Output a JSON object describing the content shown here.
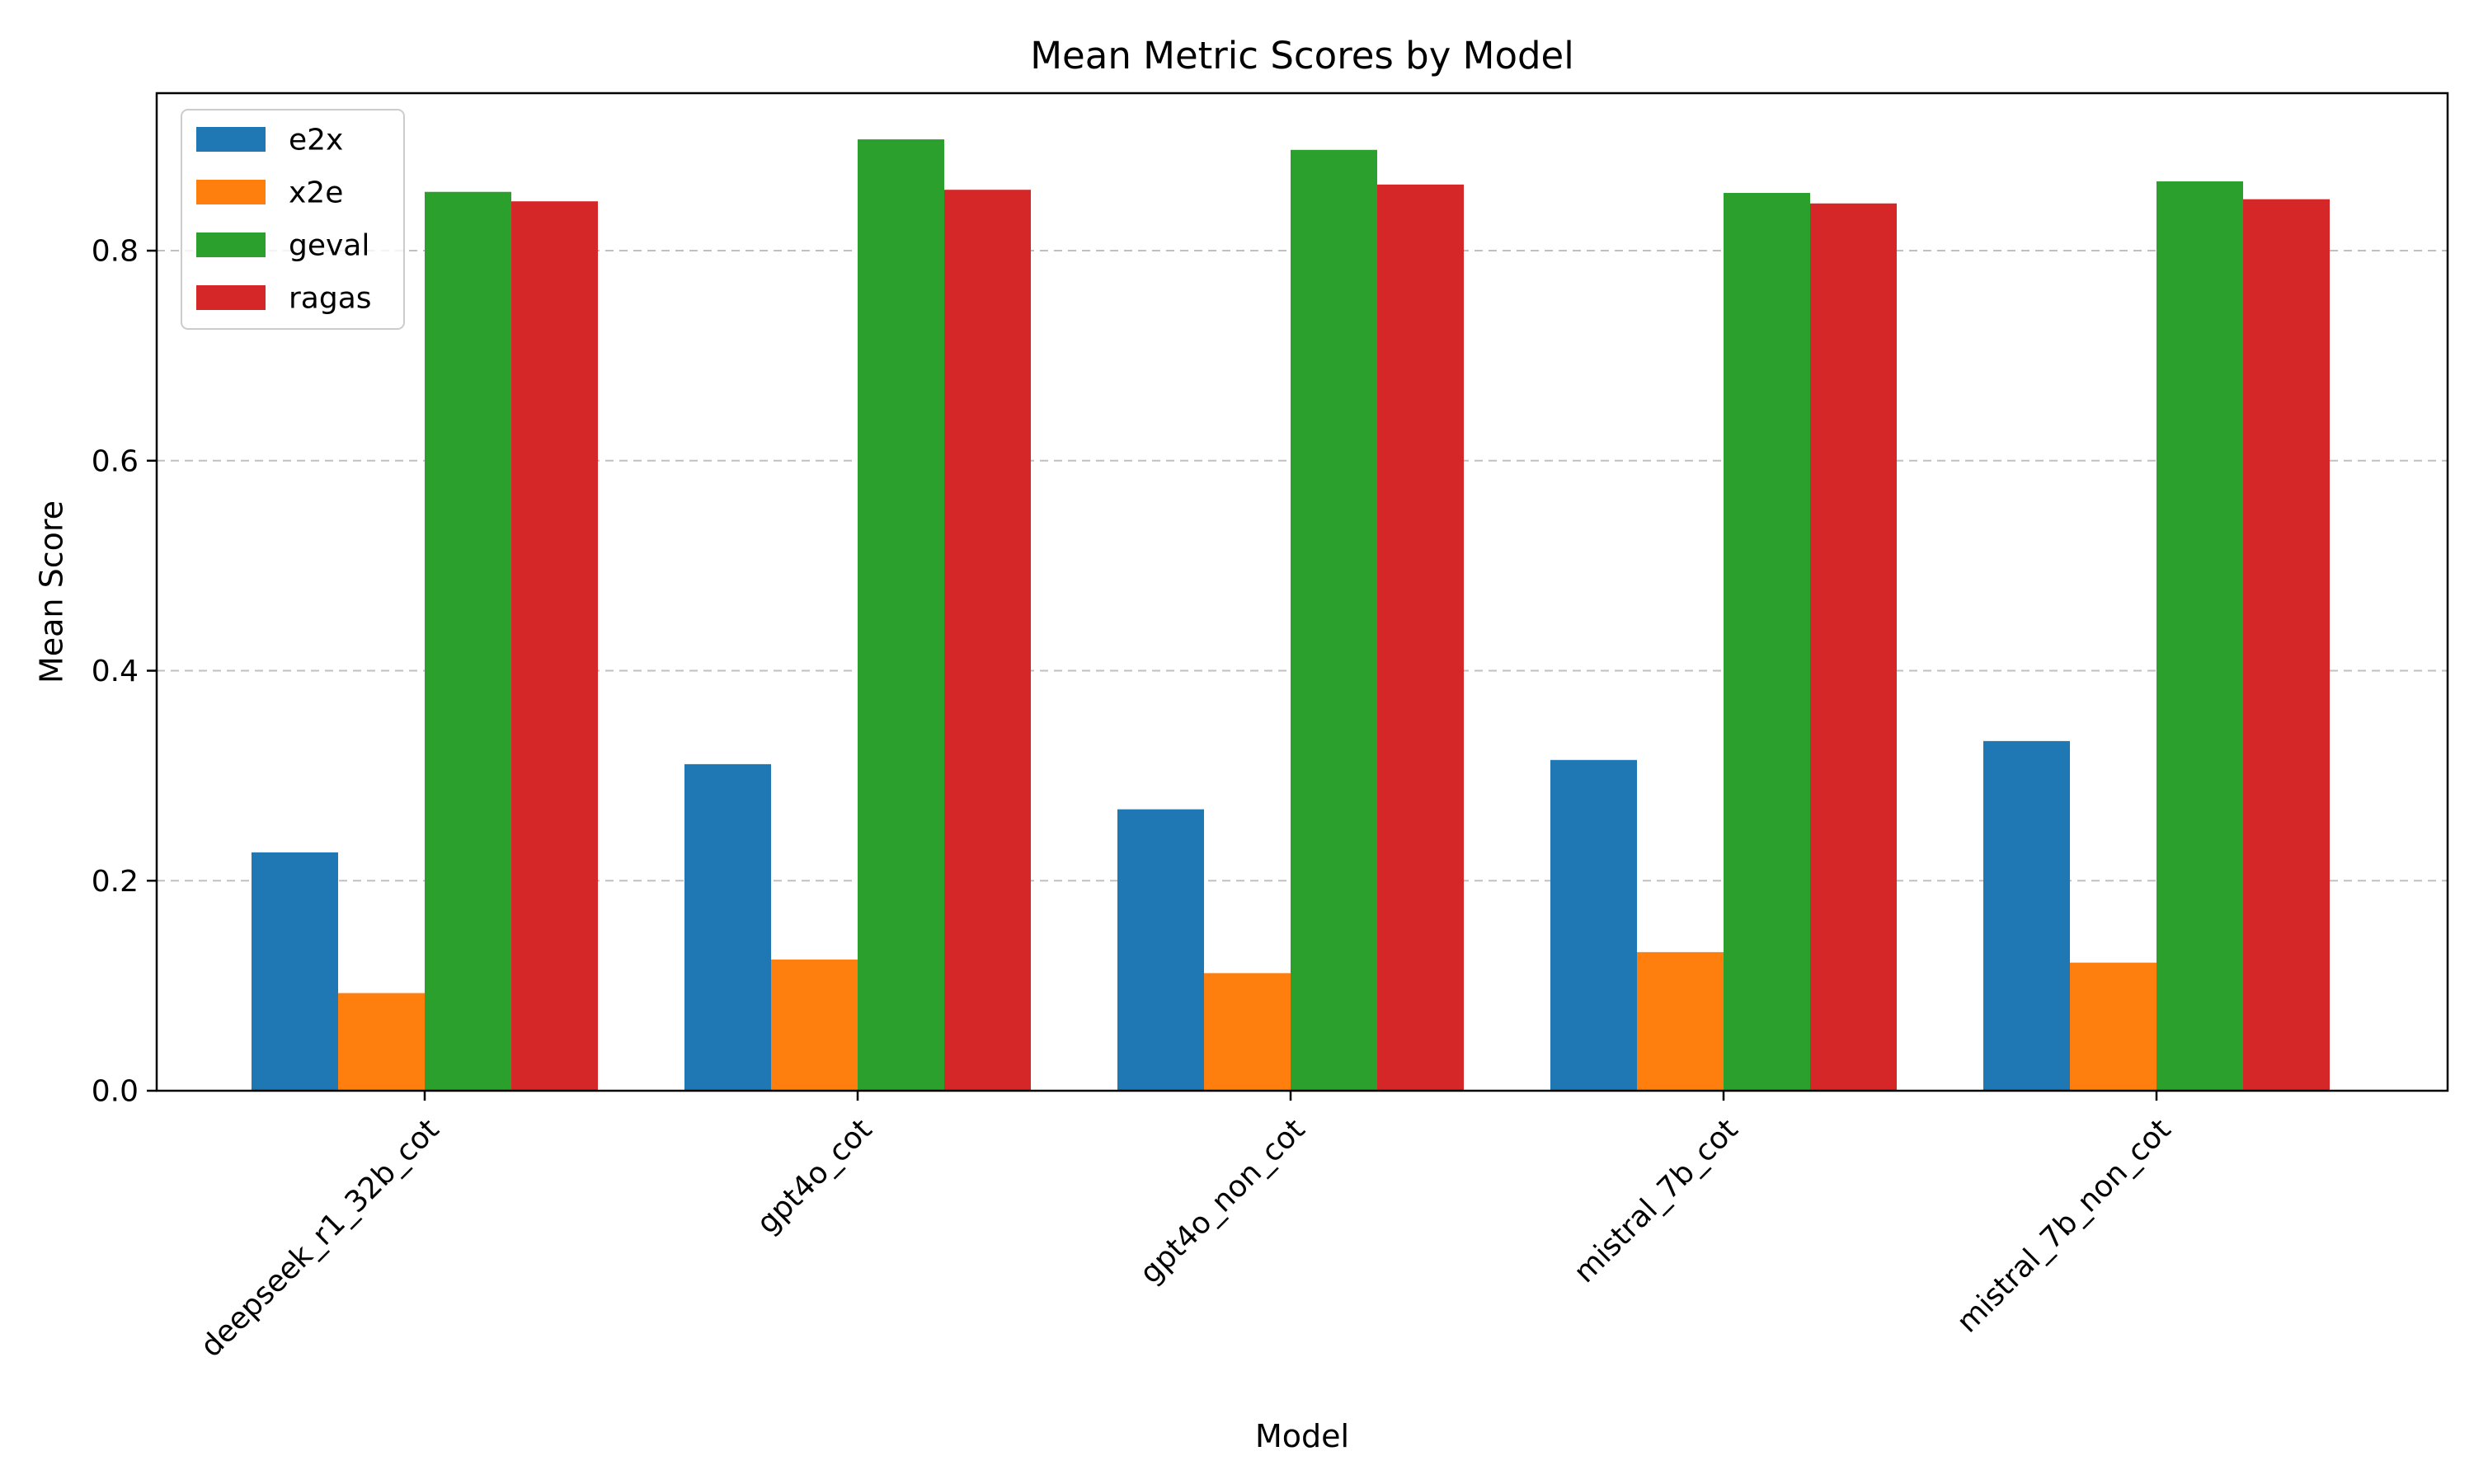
{
  "chart_data": {
    "type": "bar",
    "title": "Mean Metric Scores by Model",
    "xlabel": "Model",
    "ylabel": "Mean Score",
    "categories": [
      "deepseek_r1_32b_cot",
      "gpt4o_cot",
      "gpt4o_non_cot",
      "mistral_7b_cot",
      "mistral_7b_non_cot"
    ],
    "series": [
      {
        "name": "e2x",
        "color": "#1f77b4",
        "values": [
          0.227,
          0.311,
          0.268,
          0.315,
          0.333
        ]
      },
      {
        "name": "x2e",
        "color": "#ff7f0e",
        "values": [
          0.093,
          0.125,
          0.112,
          0.132,
          0.122
        ]
      },
      {
        "name": "geval",
        "color": "#2ca02c",
        "values": [
          0.856,
          0.906,
          0.896,
          0.855,
          0.866
        ]
      },
      {
        "name": "ragas",
        "color": "#d62728",
        "values": [
          0.847,
          0.858,
          0.863,
          0.845,
          0.849
        ]
      }
    ],
    "ylim": [
      0,
      0.95
    ],
    "yticks": [
      0.0,
      0.2,
      0.4,
      0.6,
      0.8
    ],
    "ytick_labels": [
      "0.0",
      "0.2",
      "0.4",
      "0.6",
      "0.8"
    ],
    "grid": "y-dashed",
    "legend_position": "top-left"
  }
}
